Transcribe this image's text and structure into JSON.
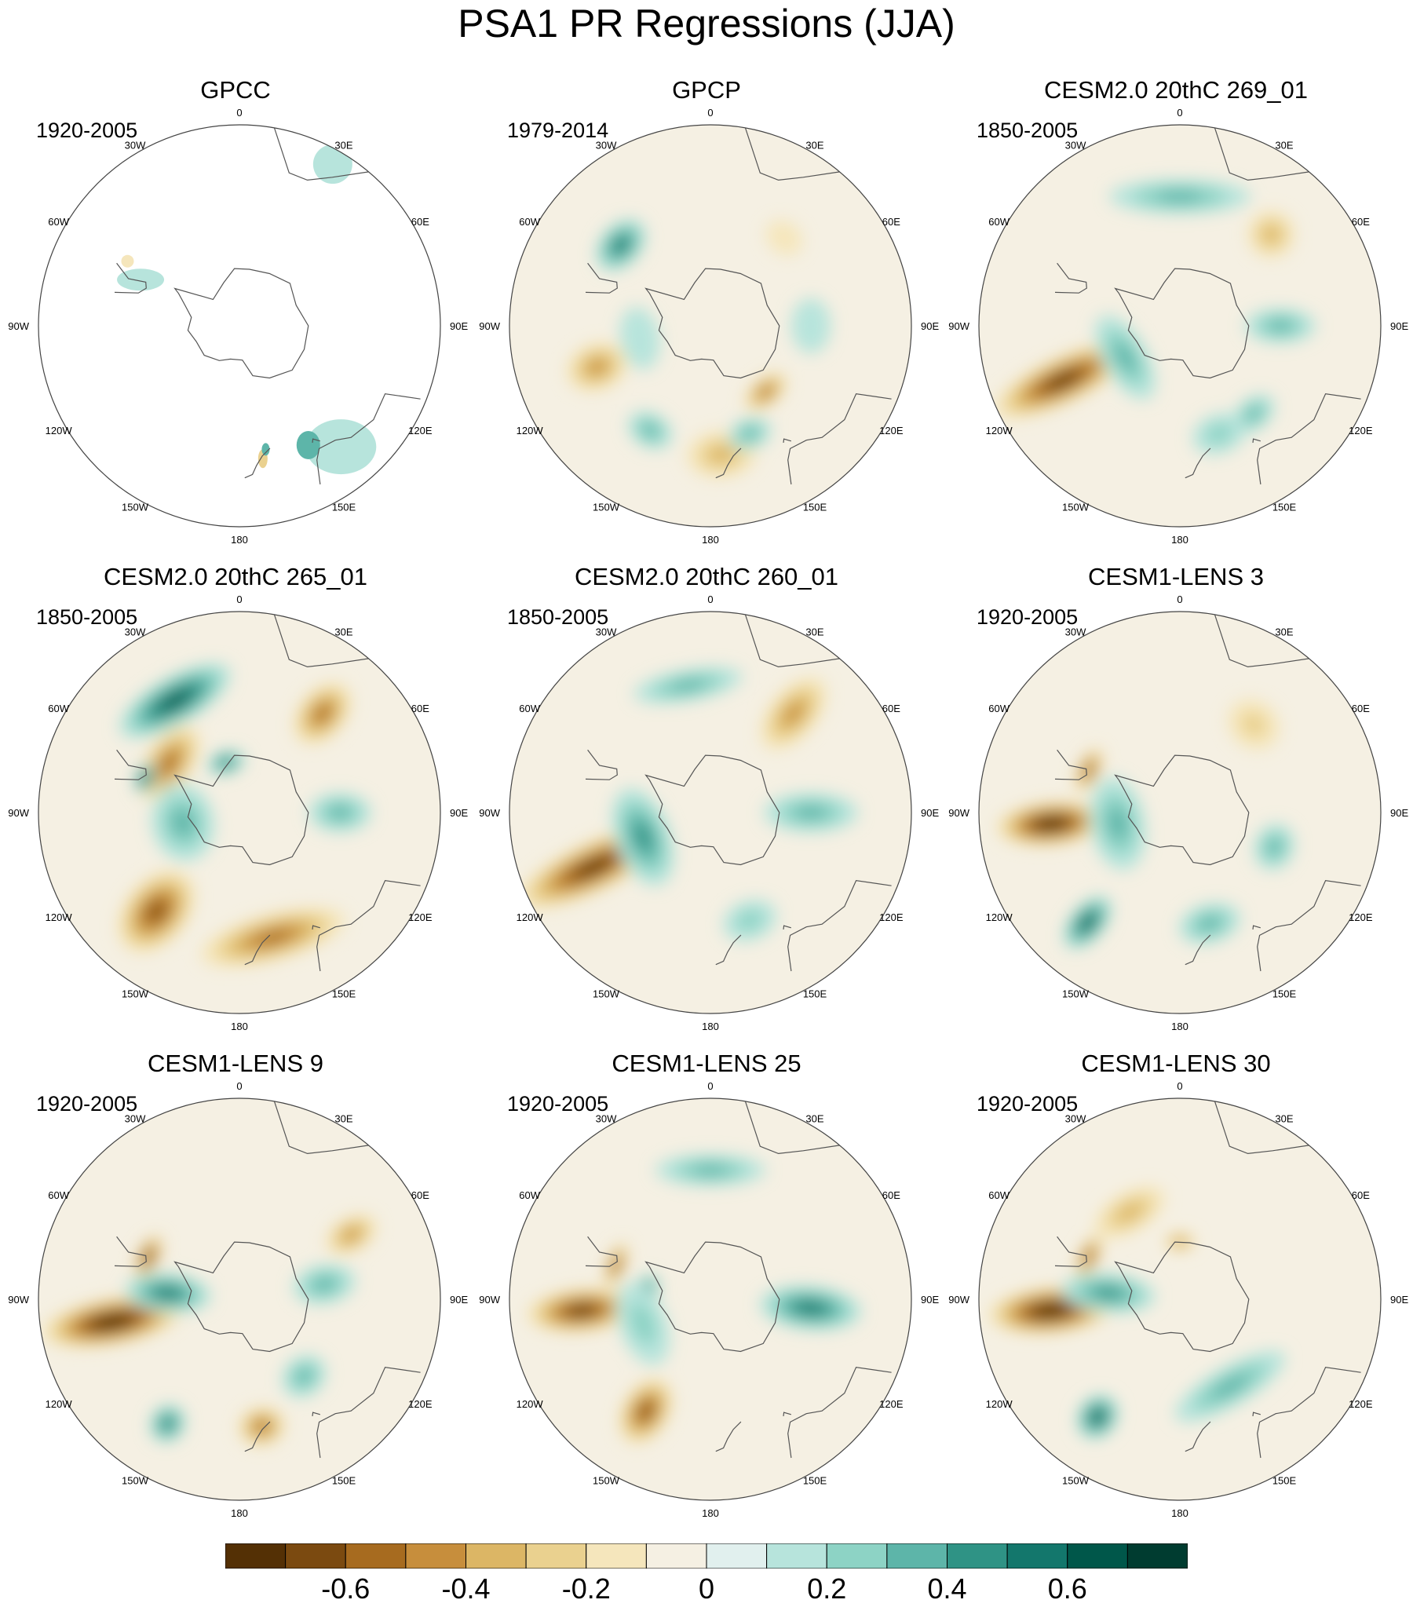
{
  "title": "PSA1 PR Regressions (JJA)",
  "longitude_labels": [
    "0",
    "30E",
    "60E",
    "90E",
    "120E",
    "150E",
    "180",
    "150W",
    "120W",
    "90W",
    "60W",
    "30W"
  ],
  "panels": [
    {
      "title": "GPCC",
      "period": "1920-2005",
      "fill": "partial",
      "blobs": []
    },
    {
      "title": "GPCP",
      "period": "1979-2014",
      "fill": "full",
      "blobs": [
        {
          "lon": -48,
          "lat": -48,
          "value": 0.45,
          "rx": 38,
          "ry": 26
        },
        {
          "lon": -110,
          "lat": -48,
          "value": -0.4,
          "rx": 30,
          "ry": 40
        },
        {
          "lon": 175,
          "lat": -45,
          "value": -0.35,
          "rx": 45,
          "ry": 30
        },
        {
          "lon": 140,
          "lat": -60,
          "value": -0.45,
          "rx": 32,
          "ry": 18
        },
        {
          "lon": 160,
          "lat": -50,
          "value": 0.3,
          "rx": 28,
          "ry": 20
        },
        {
          "lon": -150,
          "lat": -48,
          "value": 0.25,
          "rx": 30,
          "ry": 22
        },
        {
          "lon": 40,
          "lat": -50,
          "value": -0.15,
          "rx": 25,
          "ry": 20
        },
        {
          "lon": -100,
          "lat": -65,
          "value": 0.15,
          "rx": 40,
          "ry": 25
        },
        {
          "lon": 90,
          "lat": -55,
          "value": 0.15,
          "rx": 35,
          "ry": 25
        }
      ]
    },
    {
      "title": "CESM2.0 20thC 269_01",
      "period": "1850-2005",
      "fill": "full",
      "blobs": [
        {
          "lon": -115,
          "lat": -45,
          "value": -0.65,
          "rx": 30,
          "ry": 95
        },
        {
          "lon": 0,
          "lat": -45,
          "value": 0.3,
          "rx": 90,
          "ry": 22
        },
        {
          "lon": 45,
          "lat": -45,
          "value": -0.35,
          "rx": 30,
          "ry": 30
        },
        {
          "lon": 90,
          "lat": -55,
          "value": 0.3,
          "rx": 22,
          "ry": 45
        },
        {
          "lon": -120,
          "lat": -68,
          "value": 0.35,
          "rx": 60,
          "ry": 28
        },
        {
          "lon": 140,
          "lat": -50,
          "value": 0.3,
          "rx": 30,
          "ry": 20
        },
        {
          "lon": 160,
          "lat": -50,
          "value": 0.2,
          "rx": 35,
          "ry": 25
        }
      ]
    },
    {
      "title": "CESM2.0 20thC 265_01",
      "period": "1850-2005",
      "fill": "full",
      "blobs": [
        {
          "lon": -30,
          "lat": -45,
          "value": 0.6,
          "rx": 80,
          "ry": 30
        },
        {
          "lon": -55,
          "lat": -60,
          "value": -0.5,
          "rx": 55,
          "ry": 30
        },
        {
          "lon": -70,
          "lat": -55,
          "value": 0.65,
          "rx": 20,
          "ry": 12
        },
        {
          "lon": 40,
          "lat": -45,
          "value": -0.45,
          "rx": 30,
          "ry": 45
        },
        {
          "lon": 90,
          "lat": -55,
          "value": 0.35,
          "rx": 25,
          "ry": 40
        },
        {
          "lon": -140,
          "lat": -45,
          "value": -0.6,
          "rx": 40,
          "ry": 60
        },
        {
          "lon": 165,
          "lat": -45,
          "value": -0.45,
          "rx": 95,
          "ry": 30
        },
        {
          "lon": -100,
          "lat": -70,
          "value": 0.35,
          "rx": 50,
          "ry": 40
        },
        {
          "lon": -15,
          "lat": -72,
          "value": 0.5,
          "rx": 25,
          "ry": 15
        }
      ]
    },
    {
      "title": "CESM2.0 20thC 260_01",
      "period": "1850-2005",
      "fill": "full",
      "blobs": [
        {
          "lon": -115,
          "lat": -45,
          "value": -0.7,
          "rx": 32,
          "ry": 105
        },
        {
          "lon": 40,
          "lat": -45,
          "value": -0.4,
          "rx": 30,
          "ry": 55
        },
        {
          "lon": 90,
          "lat": -55,
          "value": 0.35,
          "rx": 25,
          "ry": 60
        },
        {
          "lon": -10,
          "lat": -45,
          "value": 0.3,
          "rx": 70,
          "ry": 20
        },
        {
          "lon": -110,
          "lat": -65,
          "value": 0.4,
          "rx": 65,
          "ry": 35
        },
        {
          "lon": 160,
          "lat": -50,
          "value": 0.2,
          "rx": 35,
          "ry": 25
        }
      ]
    },
    {
      "title": "CESM1-LENS 3",
      "period": "1920-2005",
      "fill": "full",
      "blobs": [
        {
          "lon": -95,
          "lat": -45,
          "value": -0.75,
          "rx": 28,
          "ry": 70
        },
        {
          "lon": -65,
          "lat": -55,
          "value": -0.6,
          "rx": 30,
          "ry": 14
        },
        {
          "lon": -140,
          "lat": -40,
          "value": 0.55,
          "rx": 22,
          "ry": 40
        },
        {
          "lon": 110,
          "lat": -55,
          "value": 0.35,
          "rx": 30,
          "ry": 25
        },
        {
          "lon": 40,
          "lat": -50,
          "value": -0.2,
          "rx": 35,
          "ry": 30
        },
        {
          "lon": -100,
          "lat": -68,
          "value": 0.25,
          "rx": 60,
          "ry": 35
        },
        {
          "lon": 165,
          "lat": -50,
          "value": 0.25,
          "rx": 40,
          "ry": 25
        }
      ]
    },
    {
      "title": "CESM1-LENS 9",
      "period": "1920-2005",
      "fill": "full",
      "blobs": [
        {
          "lon": -100,
          "lat": -45,
          "value": -0.75,
          "rx": 30,
          "ry": 90
        },
        {
          "lon": -65,
          "lat": -55,
          "value": -0.65,
          "rx": 30,
          "ry": 14
        },
        {
          "lon": -85,
          "lat": -65,
          "value": 0.45,
          "rx": 25,
          "ry": 55
        },
        {
          "lon": -150,
          "lat": -40,
          "value": 0.5,
          "rx": 22,
          "ry": 25
        },
        {
          "lon": 170,
          "lat": -45,
          "value": -0.45,
          "rx": 30,
          "ry": 25
        },
        {
          "lon": 60,
          "lat": -45,
          "value": -0.4,
          "rx": 22,
          "ry": 35
        },
        {
          "lon": 80,
          "lat": -60,
          "value": 0.35,
          "rx": 25,
          "ry": 40
        },
        {
          "lon": 140,
          "lat": -55,
          "value": 0.3,
          "rx": 30,
          "ry": 25
        }
      ]
    },
    {
      "title": "CESM1-LENS 25",
      "period": "1920-2005",
      "fill": "full",
      "blobs": [
        {
          "lon": -95,
          "lat": -45,
          "value": -0.7,
          "rx": 28,
          "ry": 70
        },
        {
          "lon": -70,
          "lat": -55,
          "value": -0.6,
          "rx": 30,
          "ry": 12
        },
        {
          "lon": 95,
          "lat": -55,
          "value": 0.5,
          "rx": 28,
          "ry": 65
        },
        {
          "lon": -150,
          "lat": -45,
          "value": -0.55,
          "rx": 30,
          "ry": 45
        },
        {
          "lon": 0,
          "lat": -45,
          "value": 0.3,
          "rx": 70,
          "ry": 20
        },
        {
          "lon": -80,
          "lat": -68,
          "value": 0.45,
          "rx": 18,
          "ry": 14
        },
        {
          "lon": -110,
          "lat": -65,
          "value": 0.2,
          "rx": 55,
          "ry": 30
        }
      ]
    },
    {
      "title": "CESM1-LENS 30",
      "period": "1920-2005",
      "fill": "full",
      "blobs": [
        {
          "lon": -95,
          "lat": -45,
          "value": -0.75,
          "rx": 30,
          "ry": 80
        },
        {
          "lon": -65,
          "lat": -55,
          "value": -0.6,
          "rx": 30,
          "ry": 13
        },
        {
          "lon": -145,
          "lat": -40,
          "value": 0.6,
          "rx": 25,
          "ry": 30
        },
        {
          "lon": -85,
          "lat": -65,
          "value": 0.4,
          "rx": 25,
          "ry": 60
        },
        {
          "lon": 150,
          "lat": -55,
          "value": 0.35,
          "rx": 80,
          "ry": 25
        },
        {
          "lon": -30,
          "lat": -55,
          "value": -0.3,
          "rx": 50,
          "ry": 25
        },
        {
          "lon": 0,
          "lat": -70,
          "value": -0.4,
          "rx": 20,
          "ry": 12
        }
      ]
    }
  ],
  "colorbar": {
    "colors": [
      "#543005",
      "#7b4a10",
      "#a76b1f",
      "#c78e3c",
      "#dcb665",
      "#ead18f",
      "#f5e6bc",
      "#f5f0e3",
      "#e1f0ee",
      "#b7e4dc",
      "#8dd3c5",
      "#5db5a9",
      "#2f9385",
      "#13776c",
      "#00574a",
      "#003c30"
    ],
    "labels": [
      "-0.6",
      "-0.4",
      "-0.2",
      "0",
      "0.2",
      "0.4",
      "0.6"
    ]
  }
}
